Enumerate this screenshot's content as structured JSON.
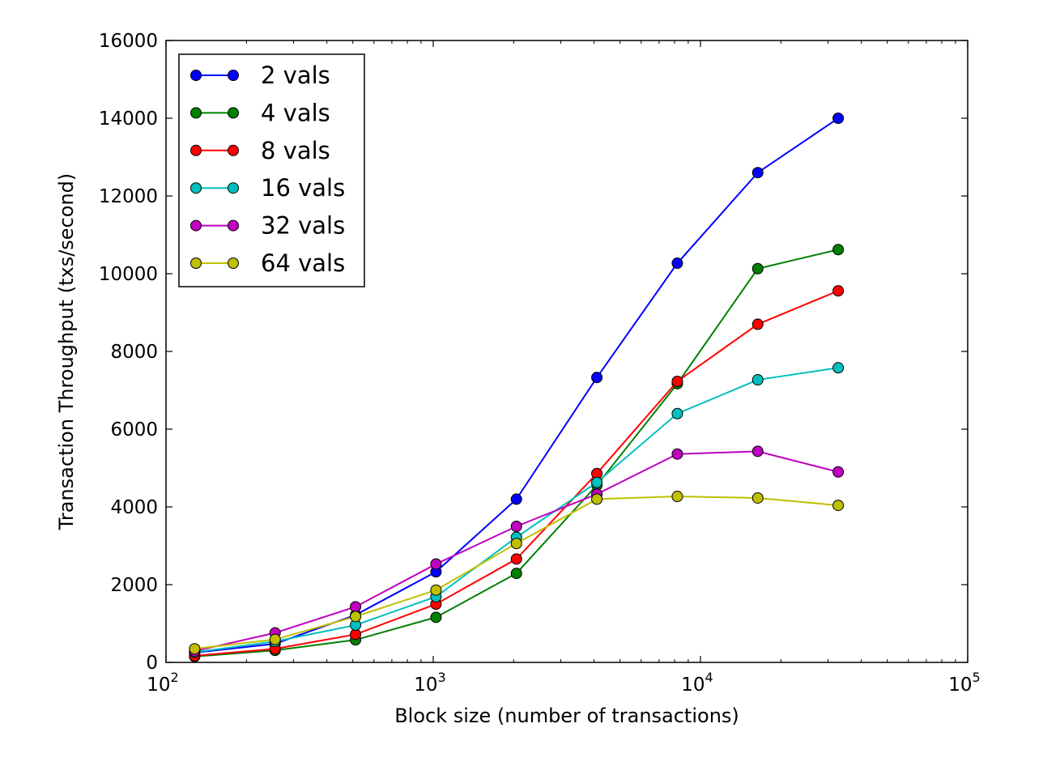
{
  "chart_data": {
    "type": "line",
    "title": "",
    "xlabel": "Block size (number of transactions)",
    "ylabel": "Transaction Throughput (txs/second)",
    "x_scale": "log",
    "xlim": [
      100,
      100000
    ],
    "ylim": [
      0,
      16000
    ],
    "grid": false,
    "legend_position": "top-left",
    "x_ticks": [
      {
        "value": 100,
        "base": "10",
        "exp": "2"
      },
      {
        "value": 1000,
        "base": "10",
        "exp": "3"
      },
      {
        "value": 10000,
        "base": "10",
        "exp": "4"
      },
      {
        "value": 100000,
        "base": "10",
        "exp": "5"
      }
    ],
    "y_ticks": [
      0,
      2000,
      4000,
      6000,
      8000,
      10000,
      12000,
      14000,
      16000
    ],
    "x": [
      128,
      256,
      512,
      1024,
      2048,
      4096,
      8192,
      16384,
      32768
    ],
    "series": [
      {
        "name": "2 vals",
        "color": "#0000ff",
        "values": [
          250,
          480,
          1220,
          2330,
          4200,
          7330,
          10270,
          12600,
          14000
        ]
      },
      {
        "name": "4 vals",
        "color": "#008000",
        "values": [
          150,
          310,
          580,
          1160,
          2290,
          4560,
          7170,
          10130,
          10620
        ]
      },
      {
        "name": "8 vals",
        "color": "#ff0000",
        "values": [
          170,
          350,
          720,
          1500,
          2660,
          4860,
          7230,
          8700,
          9560
        ]
      },
      {
        "name": "16 vals",
        "color": "#00bfbf",
        "values": [
          260,
          540,
          960,
          1690,
          3220,
          4630,
          6400,
          7270,
          7580
        ]
      },
      {
        "name": "32 vals",
        "color": "#bf00bf",
        "values": [
          290,
          760,
          1430,
          2530,
          3500,
          4330,
          5360,
          5430,
          4900
        ]
      },
      {
        "name": "64 vals",
        "color": "#bfbf00",
        "values": [
          350,
          590,
          1180,
          1860,
          3060,
          4200,
          4270,
          4230,
          4040
        ]
      }
    ]
  }
}
